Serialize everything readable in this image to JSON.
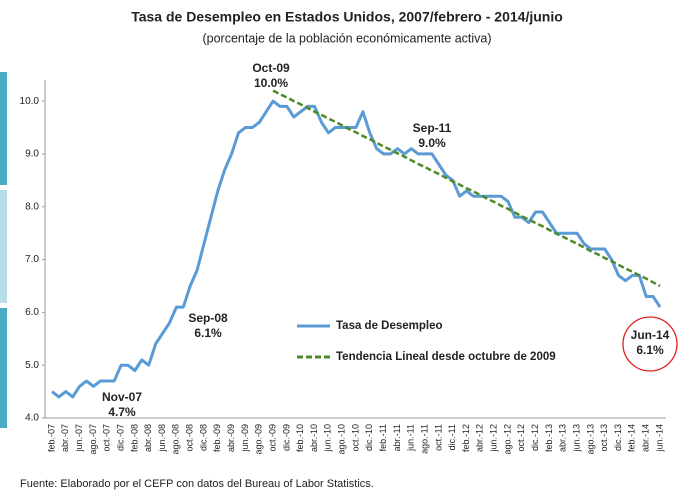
{
  "chart_data": {
    "type": "line",
    "title": "Tasa de Desempleo en Estados Unidos, 2007/febrero - 2014/junio",
    "subtitle": "(porcentaje de la población económicamente activa)",
    "source": "Fuente: Elaborado por el CEFP con datos del Bureau of Labor Statistics.",
    "categories": [
      "feb.-07",
      null,
      "abr.-07",
      null,
      "jun.-07",
      null,
      "ago.-07",
      null,
      "oct.-07",
      null,
      "dic.-07",
      null,
      "feb.-08",
      null,
      "abr.-08",
      null,
      "jun.-08",
      null,
      "ago.-08",
      null,
      "oct.-08",
      null,
      "dic.-08",
      null,
      "feb.-09",
      null,
      "abr.-09",
      null,
      "jun.-09",
      null,
      "ago.-09",
      null,
      "oct.-09",
      null,
      "dic.-09",
      null,
      "feb.-10",
      null,
      "abr.-10",
      null,
      "jun.-10",
      null,
      "ago.-10",
      null,
      "oct.-10",
      null,
      "dic.-10",
      null,
      "feb.-11",
      null,
      "abr.-11",
      null,
      "jun.-11",
      null,
      "ago.-11",
      null,
      "oct.-11",
      null,
      "dic.-11",
      null,
      "feb.-12",
      null,
      "abr.-12",
      null,
      "jun.-12",
      null,
      "ago.-12",
      null,
      "oct.-12",
      null,
      "dic.-12",
      null,
      "feb.-13",
      null,
      "abr.-13",
      null,
      "jun.-13",
      null,
      "ago.-13",
      null,
      "oct.-13",
      null,
      "dic.-13",
      null,
      "feb.-14",
      null,
      "abr.-14",
      null,
      "jun.-14"
    ],
    "series": [
      {
        "name": "Tasa de Desempleo",
        "color": "#5b9bd5",
        "dash": false,
        "values": [
          4.5,
          4.4,
          4.5,
          4.4,
          4.6,
          4.7,
          4.6,
          4.7,
          4.7,
          4.7,
          5.0,
          5.0,
          4.9,
          5.1,
          5.0,
          5.4,
          5.6,
          5.8,
          6.1,
          6.1,
          6.5,
          6.8,
          7.3,
          7.8,
          8.3,
          8.7,
          9.0,
          9.4,
          9.5,
          9.5,
          9.6,
          9.8,
          10.0,
          9.9,
          9.9,
          9.7,
          9.8,
          9.9,
          9.9,
          9.6,
          9.4,
          9.5,
          9.5,
          9.5,
          9.5,
          9.8,
          9.4,
          9.1,
          9.0,
          9.0,
          9.1,
          9.0,
          9.1,
          9.0,
          9.0,
          9.0,
          8.8,
          8.6,
          8.5,
          8.2,
          8.3,
          8.2,
          8.2,
          8.2,
          8.2,
          8.2,
          8.1,
          7.8,
          7.8,
          7.7,
          7.9,
          7.9,
          7.7,
          7.5,
          7.5,
          7.5,
          7.5,
          7.3,
          7.2,
          7.2,
          7.2,
          7.0,
          6.7,
          6.6,
          6.7,
          6.7,
          6.3,
          6.3,
          6.1
        ]
      },
      {
        "name": "Tendencia Lineal desde octubre de 2009",
        "color": "#4e8a2a",
        "dash": true,
        "values": [
          null,
          null,
          null,
          null,
          null,
          null,
          null,
          null,
          null,
          null,
          null,
          null,
          null,
          null,
          null,
          null,
          null,
          null,
          null,
          null,
          null,
          null,
          null,
          null,
          null,
          null,
          null,
          null,
          null,
          null,
          null,
          null,
          10.2,
          10.13,
          10.07,
          10.0,
          9.94,
          9.87,
          9.8,
          9.74,
          9.67,
          9.61,
          9.54,
          9.47,
          9.41,
          9.34,
          9.28,
          9.21,
          9.14,
          9.08,
          9.01,
          8.95,
          8.88,
          8.81,
          8.75,
          8.68,
          8.62,
          8.55,
          8.48,
          8.42,
          8.35,
          8.29,
          8.22,
          8.15,
          8.09,
          8.02,
          7.96,
          7.89,
          7.82,
          7.76,
          7.69,
          7.63,
          7.56,
          7.49,
          7.43,
          7.36,
          7.3,
          7.23,
          7.16,
          7.1,
          7.03,
          6.97,
          6.9,
          6.83,
          6.77,
          6.7,
          6.64,
          6.57,
          6.5
        ]
      }
    ],
    "annotations": [
      {
        "label": "Oct-09",
        "value_label": "10.0%"
      },
      {
        "label": "Sep-08",
        "value_label": "6.1%"
      },
      {
        "label": "Nov-07",
        "value_label": "4.7%"
      },
      {
        "label": "Sep-11",
        "value_label": "9.0%"
      },
      {
        "label": "Jun-14",
        "value_label": "6.1%"
      }
    ],
    "ylim": [
      4,
      10.4
    ],
    "yticks": [
      {
        "value": 4,
        "label": "4.0"
      },
      {
        "value": 5,
        "label": "5.0"
      },
      {
        "value": 6,
        "label": "6.0"
      },
      {
        "value": 7,
        "label": "7.0"
      },
      {
        "value": 8,
        "label": "8.0"
      },
      {
        "value": 9,
        "label": "9.0"
      },
      {
        "value": 10,
        "label": "10.0"
      }
    ],
    "grid": false
  }
}
